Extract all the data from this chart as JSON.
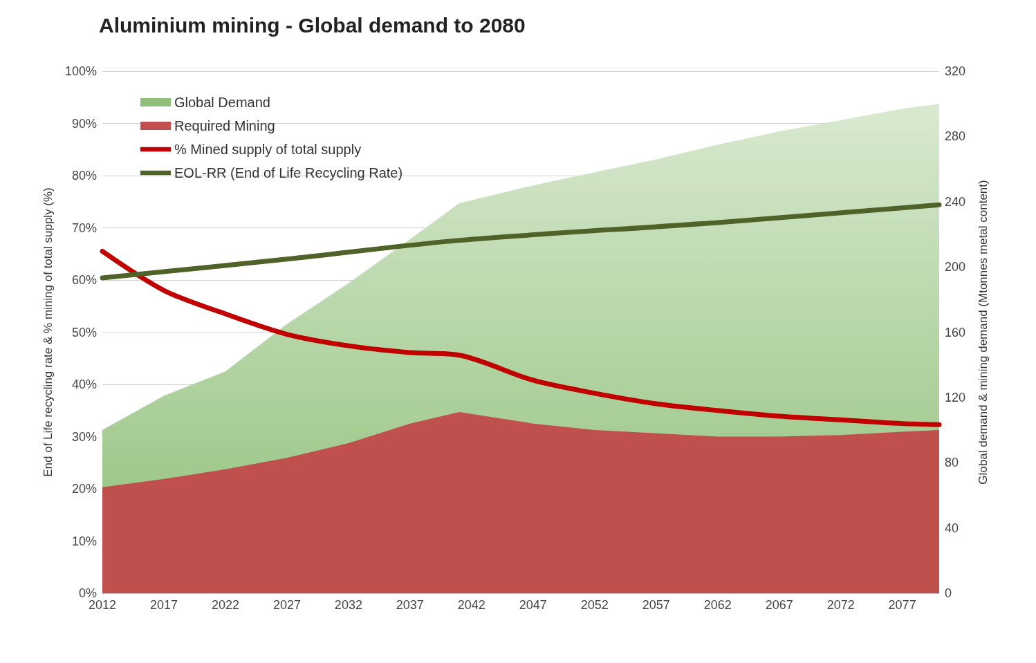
{
  "chart_data": {
    "type": "area",
    "title": "Aluminium mining - Global demand to 2080",
    "ylabel": "End of Life recycling rate & % mining of total supply (%)",
    "y2label": "Global demand & mining demand (Mtonnes metal content)",
    "x": [
      2012,
      2017,
      2022,
      2027,
      2032,
      2037,
      2041,
      2047,
      2052,
      2057,
      2062,
      2067,
      2072,
      2077,
      2080
    ],
    "series": [
      {
        "name": "Global Demand",
        "axis": "y2",
        "color": "#8fbf78",
        "values": [
          100,
          121,
          136,
          165,
          190,
          217,
          239,
          250,
          258,
          266,
          275,
          283,
          290,
          297,
          300
        ]
      },
      {
        "name": "Required Mining",
        "axis": "y2",
        "color": "#c0504d",
        "values": [
          65,
          70,
          76,
          83,
          92,
          104,
          111,
          104,
          100,
          98,
          96,
          96,
          97,
          99,
          100
        ]
      },
      {
        "name": "% Mined supply of total supply",
        "type": "line",
        "color": "#c00000",
        "values": [
          65.5,
          58,
          53.5,
          49.6,
          47.4,
          46.1,
          45.6,
          40.8,
          38.3,
          36.3,
          35,
          33.9,
          33.2,
          32.5,
          32.3
        ]
      },
      {
        "name": "EOL-RR (End of Life Recycling Rate)",
        "type": "line",
        "color": "#4f6228",
        "x": [
          2012,
          2027,
          2041,
          2062,
          2080
        ],
        "values": [
          60.4,
          64,
          67.6,
          71,
          74.4
        ]
      }
    ],
    "xlim": [
      2012,
      2080
    ],
    "xticks": [
      2012,
      2017,
      2022,
      2027,
      2032,
      2037,
      2042,
      2047,
      2052,
      2057,
      2062,
      2067,
      2072,
      2077
    ],
    "ylim": [
      0,
      100
    ],
    "yticks": [
      {
        "value": 0,
        "label": "0%"
      },
      {
        "value": 10,
        "label": "10%"
      },
      {
        "value": 20,
        "label": "20%"
      },
      {
        "value": 30,
        "label": "30%"
      },
      {
        "value": 40,
        "label": "40%"
      },
      {
        "value": 50,
        "label": "50%"
      },
      {
        "value": 60,
        "label": "60%"
      },
      {
        "value": 70,
        "label": "70%"
      },
      {
        "value": 80,
        "label": "80%"
      },
      {
        "value": 90,
        "label": "90%"
      },
      {
        "value": 100,
        "label": "100%"
      }
    ],
    "y2lim": [
      0,
      320
    ],
    "y2ticks": [
      0,
      40,
      80,
      120,
      160,
      200,
      240,
      280,
      320
    ],
    "grid": "y",
    "legend": "top left",
    "marker": "none"
  }
}
